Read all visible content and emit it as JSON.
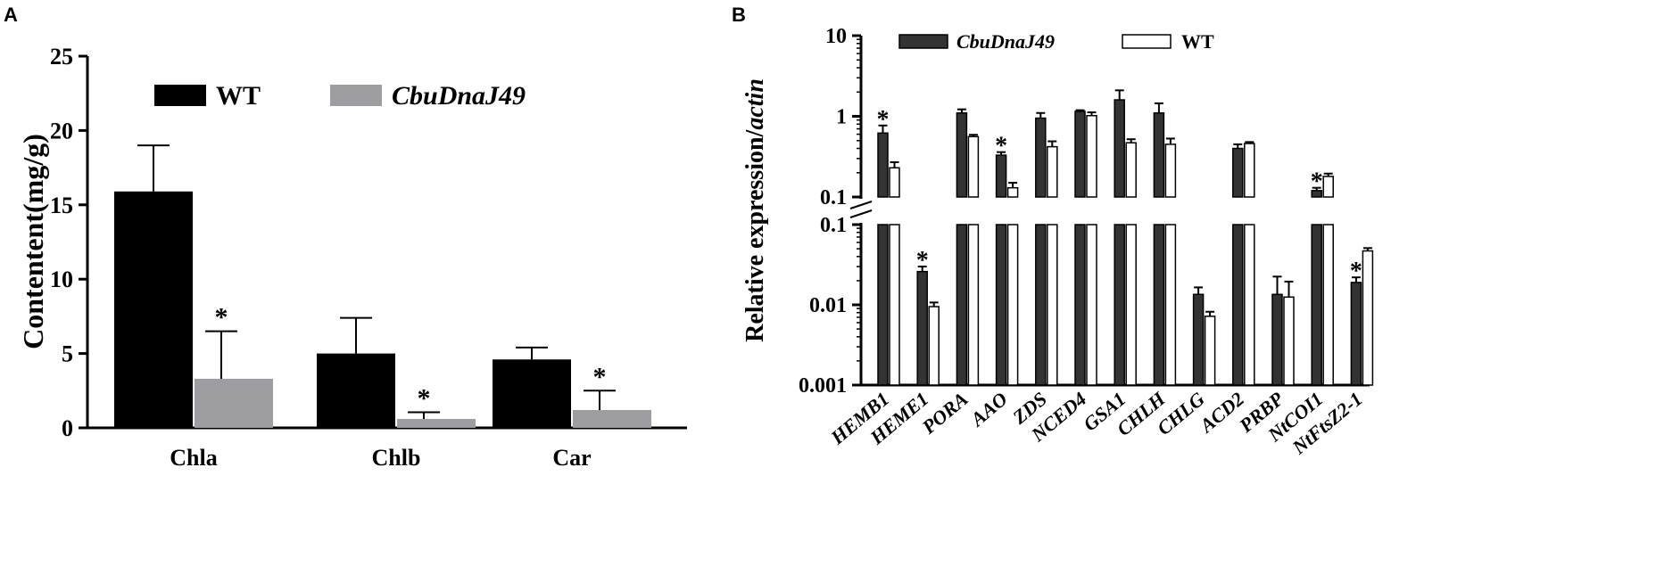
{
  "panel_a_letter": "A",
  "panel_b_letter": "B",
  "chart_data": [
    {
      "type": "bar",
      "ylabel": "Contentent(mg/g)",
      "xlabel": "",
      "ylim": [
        0,
        25
      ],
      "yticks": [
        0,
        5,
        10,
        15,
        20,
        25
      ],
      "categories": [
        "Chla",
        "Chlb",
        "Car"
      ],
      "legend_placement": "top",
      "series": [
        {
          "name": "WT",
          "color": "#000000",
          "values": [
            15.9,
            5.0,
            4.6
          ],
          "errors": [
            3.1,
            2.4,
            0.8
          ],
          "sig": [
            "",
            "",
            ""
          ]
        },
        {
          "name": "CbuDnaJ49",
          "color": "#9e9ea2",
          "values": [
            3.3,
            0.6,
            1.2
          ],
          "errors": [
            3.2,
            0.45,
            1.3
          ],
          "sig": [
            "*",
            "*",
            "*"
          ]
        }
      ]
    },
    {
      "type": "bar",
      "ylabel": "Relative expression/actin",
      "ylabel_parts": [
        "Relative expression/",
        "actin"
      ],
      "xlabel": "",
      "scale": "log (broken axis)",
      "ylim": [
        0.001,
        10
      ],
      "yticks_upper": [
        "0.1",
        "1",
        "10"
      ],
      "yticks_lower": [
        "0.001",
        "0.01",
        "0.1"
      ],
      "categories": [
        "HEMB1",
        "HEME1",
        "PORA",
        "AAO",
        "ZDS",
        "NCED4",
        "GSA1",
        "CHLH",
        "CHLG",
        "ACD2",
        "PRBP",
        "NtCOI1",
        "NtFtsZ2-1"
      ],
      "legend_placement": "top",
      "series": [
        {
          "name": "CbuDnaJ49",
          "color": "#333333",
          "values": [
            0.62,
            0.026,
            1.1,
            0.33,
            0.95,
            1.15,
            1.6,
            1.1,
            0.0135,
            0.4,
            0.0135,
            0.12,
            0.019
          ],
          "errors": [
            0.15,
            0.004,
            0.12,
            0.03,
            0.15,
            0.04,
            0.5,
            0.35,
            0.003,
            0.05,
            0.009,
            0.01,
            0.003
          ],
          "sig": [
            "*",
            "*",
            "",
            "*",
            "",
            "",
            "",
            "",
            "",
            "",
            "",
            "*",
            "*"
          ]
        },
        {
          "name": "WT",
          "color": "#ffffff",
          "values": [
            0.23,
            0.0095,
            0.56,
            0.13,
            0.42,
            1.02,
            0.47,
            0.45,
            0.0072,
            0.46,
            0.0125,
            0.18,
            0.047
          ],
          "errors": [
            0.04,
            0.0012,
            0.03,
            0.02,
            0.07,
            0.1,
            0.05,
            0.08,
            0.001,
            0.02,
            0.007,
            0.015,
            0.004
          ],
          "sig": [
            "",
            "",
            "",
            "",
            "",
            "",
            "",
            "",
            "",
            "",
            "",
            "",
            ""
          ]
        }
      ]
    }
  ]
}
